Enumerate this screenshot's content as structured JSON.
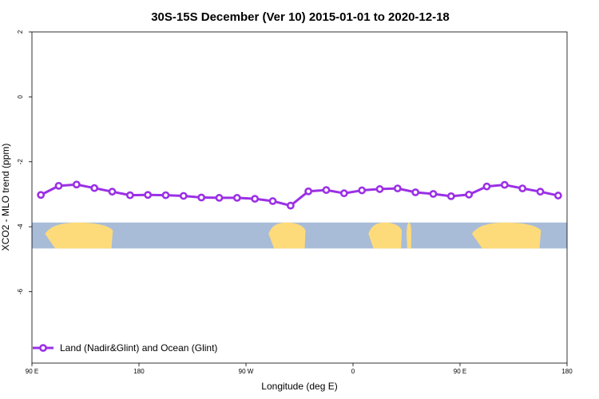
{
  "chart_data": {
    "type": "line",
    "title": "30S-15S December (Ver 10)   2015-01-01 to 2020-12-18",
    "xlabel": "Longitude (deg E)",
    "ylabel": "XCO2 - MLO trend (ppm)",
    "x_tick_labels": [
      "90 E",
      "180",
      "90 W",
      "0",
      "90 E",
      "180"
    ],
    "y_tick_labels": [
      "2",
      "0",
      "-2",
      "-4",
      "-6"
    ],
    "ylim": [
      -8.2,
      2
    ],
    "y_ticks": [
      2,
      0,
      -2,
      -4,
      -6
    ],
    "grid": false,
    "legend_position": "bottom-left",
    "series": [
      {
        "name": "Land (Nadir&Glint) and Ocean (Glint)",
        "color": "#9b30e6",
        "x": [
          97.5,
          112.5,
          127.5,
          142.5,
          157.5,
          172.5,
          187.5,
          202.5,
          217.5,
          232.5,
          247.5,
          262.5,
          277.5,
          292.5,
          307.5,
          322.5,
          337.5,
          352.5,
          367.5,
          382.5,
          397.5,
          412.5,
          427.5,
          442.5,
          457.5,
          472.5,
          487.5,
          502.5,
          517.5,
          532.5
        ],
        "values": [
          -3.02,
          -2.74,
          -2.7,
          -2.81,
          -2.92,
          -3.03,
          -3.02,
          -3.03,
          -3.05,
          -3.1,
          -3.11,
          -3.11,
          -3.14,
          -3.21,
          -3.35,
          -2.91,
          -2.87,
          -2.97,
          -2.88,
          -2.84,
          -2.82,
          -2.94,
          -2.99,
          -3.06,
          -3.01,
          -2.76,
          -2.71,
          -2.82,
          -2.92,
          -3.04
        ]
      }
    ],
    "map_strip": {
      "ocean_color": "#a8bcd8",
      "land_color": "#fedb7a",
      "y_range": [
        -3.87,
        -4.67
      ]
    }
  }
}
